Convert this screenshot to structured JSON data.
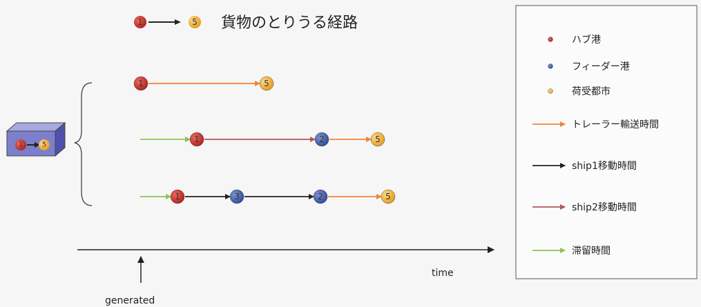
{
  "title": {
    "from": "1",
    "to": "5",
    "text": "貨物のとりうる経路"
  },
  "cargo_box": {
    "from": "1",
    "to": "5"
  },
  "routes": [
    {
      "nodes": [
        "1",
        "5"
      ],
      "segments": [
        "trailer"
      ],
      "lead_wait": false
    },
    {
      "nodes": [
        "1",
        "2",
        "5"
      ],
      "segments": [
        "ship2",
        "trailer"
      ],
      "lead_wait": true
    },
    {
      "nodes": [
        "1",
        "3",
        "2",
        "5"
      ],
      "segments": [
        "ship1",
        "ship1",
        "trailer"
      ],
      "lead_wait": true
    }
  ],
  "node_types": {
    "1": "hub",
    "2": "feeder",
    "3": "feeder",
    "5": "city"
  },
  "colors": {
    "hub": "#c62a22",
    "feeder": "#3c58a8",
    "city": "#f0b030",
    "trailer": "#f08438",
    "ship1": "#222222",
    "ship2": "#b4545c",
    "wait": "#8cc44c"
  },
  "legend": {
    "items": [
      {
        "kind": "dot",
        "type": "hub",
        "label": "ハブ港"
      },
      {
        "kind": "dot",
        "type": "feeder",
        "label": "フィーダー港"
      },
      {
        "kind": "dot",
        "type": "city",
        "label": "荷受都市"
      },
      {
        "kind": "arrow",
        "type": "trailer",
        "label": "トレーラー輸送時間"
      },
      {
        "kind": "arrow",
        "type": "ship1",
        "label": "ship1移動時間"
      },
      {
        "kind": "arrow",
        "type": "ship2",
        "label": "ship2移動時間"
      },
      {
        "kind": "arrow",
        "type": "wait",
        "label": "滞留時間"
      }
    ]
  },
  "axis": {
    "label": "time",
    "generated_label": "generated"
  }
}
